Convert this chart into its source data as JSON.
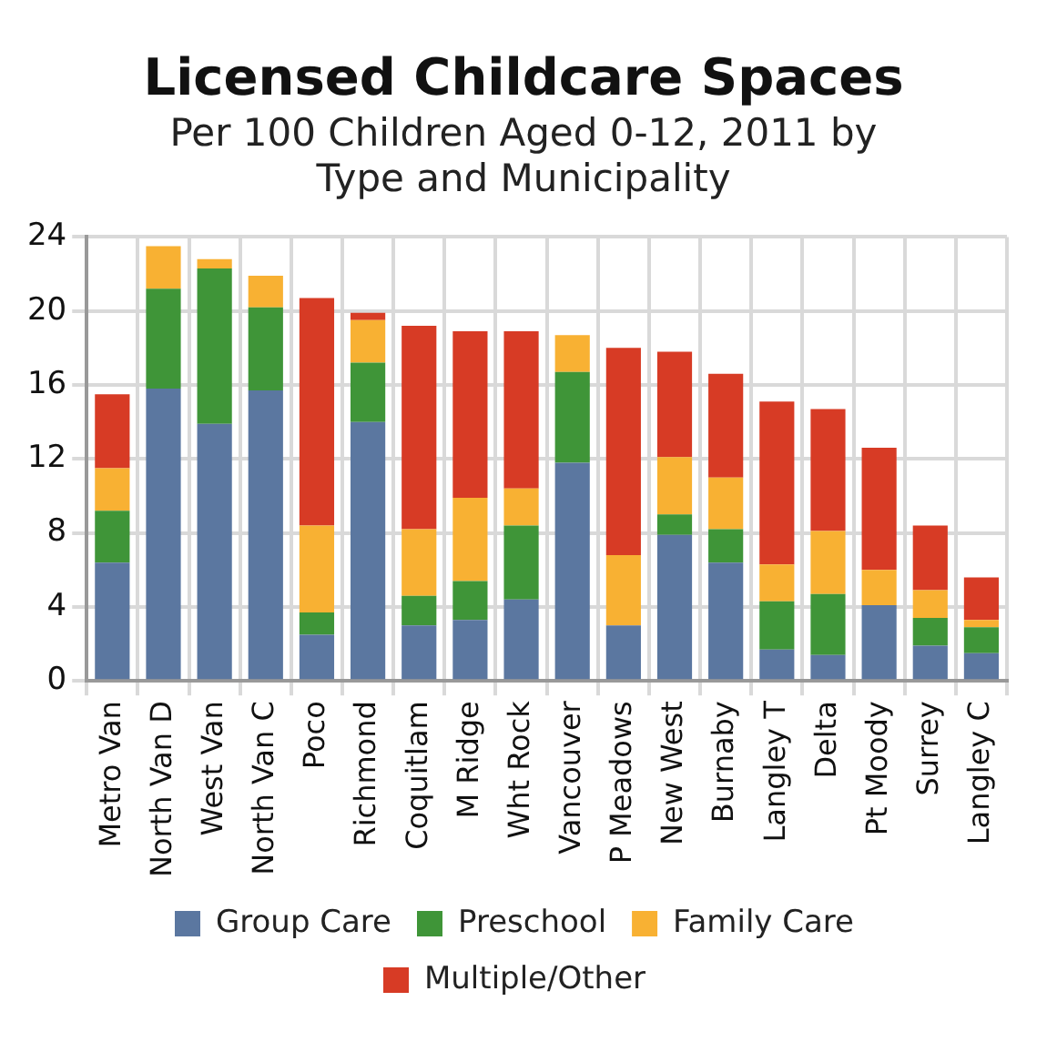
{
  "chart_data": {
    "type": "bar",
    "title": "Licensed Childcare Spaces",
    "subtitle": "Per 100 Children Aged 0-12, 2011 by Type and Municipality",
    "categories": [
      "Metro Van",
      "North Van D",
      "West Van",
      "North Van C",
      "Poco",
      "Richmond",
      "Coquitlam",
      "M Ridge",
      "Wht Rock",
      "Vancouver",
      "P Meadows",
      "New West",
      "Burnaby",
      "Langley T",
      "Delta",
      "Pt Moody",
      "Surrey",
      "Langley C"
    ],
    "stacked": true,
    "ylim": [
      0,
      24
    ],
    "yticks": [
      0,
      4,
      8,
      12,
      16,
      20,
      24
    ],
    "grid": true,
    "legend": "bottom",
    "series": [
      {
        "name": "Group Care",
        "color": "#5b77a0",
        "values": [
          6.4,
          15.8,
          13.9,
          15.7,
          2.5,
          14.0,
          3.0,
          3.3,
          4.4,
          11.8,
          3.0,
          7.9,
          6.4,
          1.7,
          1.4,
          4.1,
          1.9,
          1.5
        ]
      },
      {
        "name": "Preschool",
        "color": "#3f9538",
        "values": [
          2.8,
          5.4,
          8.4,
          4.5,
          1.2,
          3.2,
          1.6,
          2.1,
          4.0,
          4.9,
          0,
          1.1,
          1.8,
          2.6,
          3.3,
          0,
          1.5,
          1.4
        ]
      },
      {
        "name": "Family Care",
        "color": "#f8b133",
        "values": [
          2.3,
          2.3,
          0.5,
          1.7,
          4.7,
          2.3,
          3.6,
          4.5,
          2.0,
          2.0,
          3.8,
          3.1,
          2.8,
          2.0,
          3.4,
          1.9,
          1.5,
          0.4
        ]
      },
      {
        "name": "Multiple/Other",
        "color": "#d73b25",
        "values": [
          4.0,
          0,
          0,
          0,
          12.3,
          0.4,
          11.0,
          9.0,
          8.5,
          0,
          11.2,
          5.7,
          5.6,
          8.8,
          6.6,
          6.6,
          3.5,
          2.3
        ]
      }
    ]
  }
}
